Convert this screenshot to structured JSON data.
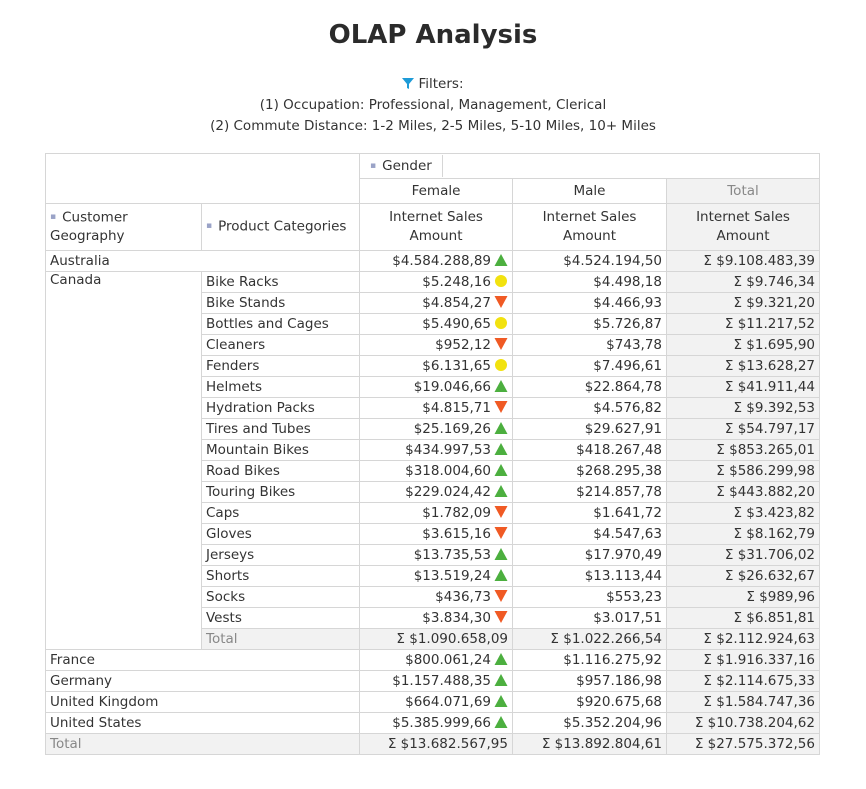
{
  "title": "OLAP Analysis",
  "filters": {
    "label": "Filters:",
    "items": [
      "(1) Occupation: Professional, Management, Clerical",
      "(2) Commute Distance: 1-2 Miles, 2-5 Miles, 5-10 Miles, 10+ Miles"
    ]
  },
  "table": {
    "column_dimension": "Gender",
    "columns": [
      "Female",
      "Male",
      "Total"
    ],
    "row_dimensions": [
      "Customer Geography",
      "Product Categories"
    ],
    "measures": [
      "Internet Sales Amount",
      "Internet Sales Amount",
      "Internet Sales Amount"
    ],
    "rows": [
      {
        "geo": "Australia",
        "cells": [
          "$4.584.288,89",
          "$4.524.194,50",
          "Σ $9.108.483,39"
        ],
        "indicator": "up"
      },
      {
        "geo": "Canada",
        "children": [
          {
            "category": "Bike Racks",
            "cells": [
              "$5.248,16",
              "$4.498,18",
              "Σ $9.746,34"
            ],
            "indicator": "mid"
          },
          {
            "category": "Bike Stands",
            "cells": [
              "$4.854,27",
              "$4.466,93",
              "Σ $9.321,20"
            ],
            "indicator": "down"
          },
          {
            "category": "Bottles and Cages",
            "cells": [
              "$5.490,65",
              "$5.726,87",
              "Σ $11.217,52"
            ],
            "indicator": "mid"
          },
          {
            "category": "Cleaners",
            "cells": [
              "$952,12",
              "$743,78",
              "Σ $1.695,90"
            ],
            "indicator": "down"
          },
          {
            "category": "Fenders",
            "cells": [
              "$6.131,65",
              "$7.496,61",
              "Σ $13.628,27"
            ],
            "indicator": "mid"
          },
          {
            "category": "Helmets",
            "cells": [
              "$19.046,66",
              "$22.864,78",
              "Σ $41.911,44"
            ],
            "indicator": "up"
          },
          {
            "category": "Hydration Packs",
            "cells": [
              "$4.815,71",
              "$4.576,82",
              "Σ $9.392,53"
            ],
            "indicator": "down"
          },
          {
            "category": "Tires and Tubes",
            "cells": [
              "$25.169,26",
              "$29.627,91",
              "Σ $54.797,17"
            ],
            "indicator": "up"
          },
          {
            "category": "Mountain Bikes",
            "cells": [
              "$434.997,53",
              "$418.267,48",
              "Σ $853.265,01"
            ],
            "indicator": "up"
          },
          {
            "category": "Road Bikes",
            "cells": [
              "$318.004,60",
              "$268.295,38",
              "Σ $586.299,98"
            ],
            "indicator": "up"
          },
          {
            "category": "Touring Bikes",
            "cells": [
              "$229.024,42",
              "$214.857,78",
              "Σ $443.882,20"
            ],
            "indicator": "up"
          },
          {
            "category": "Caps",
            "cells": [
              "$1.782,09",
              "$1.641,72",
              "Σ $3.423,82"
            ],
            "indicator": "down"
          },
          {
            "category": "Gloves",
            "cells": [
              "$3.615,16",
              "$4.547,63",
              "Σ $8.162,79"
            ],
            "indicator": "down"
          },
          {
            "category": "Jerseys",
            "cells": [
              "$13.735,53",
              "$17.970,49",
              "Σ $31.706,02"
            ],
            "indicator": "up"
          },
          {
            "category": "Shorts",
            "cells": [
              "$13.519,24",
              "$13.113,44",
              "Σ $26.632,67"
            ],
            "indicator": "up"
          },
          {
            "category": "Socks",
            "cells": [
              "$436,73",
              "$553,23",
              "Σ $989,96"
            ],
            "indicator": "down"
          },
          {
            "category": "Vests",
            "cells": [
              "$3.834,30",
              "$3.017,51",
              "Σ $6.851,81"
            ],
            "indicator": "down"
          }
        ],
        "total": {
          "label": "Total",
          "cells": [
            "Σ $1.090.658,09",
            "Σ $1.022.266,54",
            "Σ $2.112.924,63"
          ]
        }
      },
      {
        "geo": "France",
        "cells": [
          "$800.061,24",
          "$1.116.275,92",
          "Σ $1.916.337,16"
        ],
        "indicator": "up"
      },
      {
        "geo": "Germany",
        "cells": [
          "$1.157.488,35",
          "$957.186,98",
          "Σ $2.114.675,33"
        ],
        "indicator": "up"
      },
      {
        "geo": "United Kingdom",
        "cells": [
          "$664.071,69",
          "$920.675,68",
          "Σ $1.584.747,36"
        ],
        "indicator": "up"
      },
      {
        "geo": "United States",
        "cells": [
          "$5.385.999,66",
          "$5.352.204,96",
          "Σ $10.738.204,62"
        ],
        "indicator": "up"
      }
    ],
    "grand_total": {
      "label": "Total",
      "cells": [
        "Σ $13.682.567,95",
        "Σ $13.892.804,61",
        "Σ $27.575.372,56"
      ]
    }
  }
}
